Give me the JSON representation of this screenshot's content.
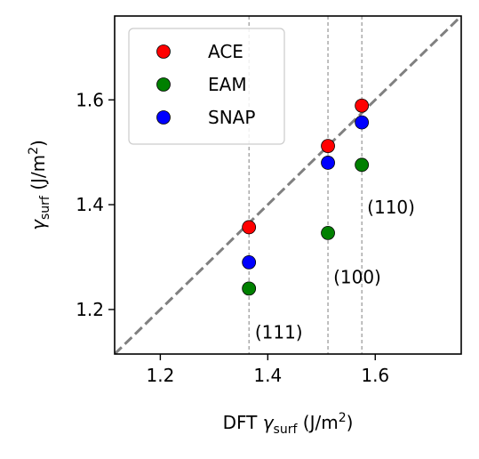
{
  "chart_data": {
    "type": "scatter",
    "xlabel": {
      "prefix": "DFT ",
      "symbol": "γ",
      "subscript": "surf",
      "unit_open": " (J/m",
      "unit_sup": "2",
      "unit_close": ")"
    },
    "ylabel": {
      "symbol": "γ",
      "subscript": "surf",
      "unit_open": " (J/m",
      "unit_sup": "2",
      "unit_close": ")"
    },
    "xlim": [
      1.115,
      1.76
    ],
    "ylim": [
      1.115,
      1.76
    ],
    "xticks": [
      1.2,
      1.4,
      1.6
    ],
    "yticks": [
      1.2,
      1.4,
      1.6
    ],
    "tick_labels": {
      "x": [
        "1.2",
        "1.4",
        "1.6"
      ],
      "y": [
        "1.2",
        "1.4",
        "1.6"
      ]
    },
    "x": [
      1.365,
      1.512,
      1.575
    ],
    "series": [
      {
        "name": "ACE",
        "color": "#ff0000",
        "values": [
          1.357,
          1.512,
          1.589
        ]
      },
      {
        "name": "EAM",
        "color": "#008000",
        "values": [
          1.24,
          1.346,
          1.476
        ]
      },
      {
        "name": "SNAP",
        "color": "#0000ff",
        "values": [
          1.29,
          1.48,
          1.557
        ]
      }
    ],
    "reference_lines": {
      "diagonal": {
        "style": "dashed",
        "color": "#808080"
      },
      "vertical": [
        1.365,
        1.512,
        1.575
      ]
    },
    "annotations": [
      {
        "text": "(111)",
        "x": 1.376,
        "y": 1.145
      },
      {
        "text": "(100)",
        "x": 1.522,
        "y": 1.25
      },
      {
        "text": "(110)",
        "x": 1.585,
        "y": 1.383
      }
    ],
    "legend": {
      "placement": "top-left",
      "entries": [
        "ACE",
        "EAM",
        "SNAP"
      ]
    },
    "grid": false
  }
}
